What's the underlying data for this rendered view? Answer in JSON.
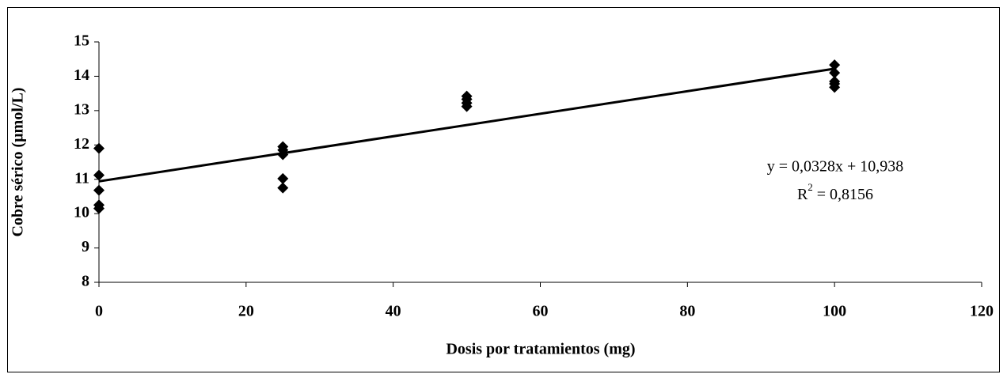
{
  "chart_data": {
    "type": "scatter",
    "xlabel": "Dosis por tratamientos (mg)",
    "ylabel": "Cobre sérico (µmol/L)",
    "series": [
      {
        "color": "#000000",
        "x": [
          0,
          0,
          0,
          0,
          0,
          25,
          25,
          25,
          25,
          25,
          50,
          50,
          50,
          50,
          100,
          100,
          100,
          100,
          100
        ],
        "values": [
          11.9,
          11.12,
          10.68,
          10.25,
          10.15,
          11.95,
          11.85,
          11.72,
          11.02,
          10.75,
          13.42,
          13.33,
          13.22,
          13.12,
          14.33,
          14.1,
          13.85,
          13.78,
          13.68
        ]
      }
    ],
    "trendline": {
      "color": "#000000",
      "x": [
        0,
        100
      ],
      "values": [
        10.94,
        14.22
      ],
      "equation": "y = 0,0328x + 10,938",
      "r2_label": {
        "base": "R",
        "sup": "2",
        "rest": " = 0,8156"
      }
    },
    "xlim": [
      0,
      120
    ],
    "xticks": [
      0,
      20,
      40,
      60,
      80,
      100,
      120
    ],
    "ylim": [
      8,
      15
    ],
    "yticks": [
      8,
      9,
      10,
      11,
      12,
      13,
      14,
      15
    ],
    "grid": false
  }
}
